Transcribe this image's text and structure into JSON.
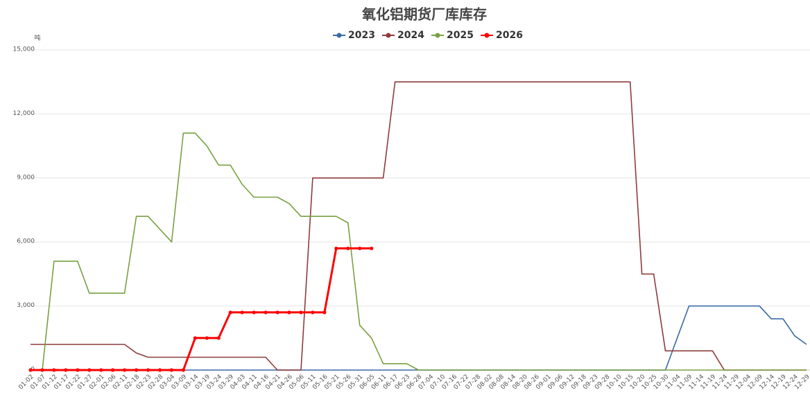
{
  "chart_data": {
    "type": "line",
    "title": "氧化铝期货厂库库存",
    "y_unit": "吨",
    "categories": [
      "01-02",
      "01-07",
      "01-12",
      "01-17",
      "01-22",
      "01-27",
      "02-01",
      "02-06",
      "02-11",
      "02-18",
      "02-23",
      "02-28",
      "03-04",
      "03-09",
      "03-14",
      "03-19",
      "03-24",
      "03-29",
      "04-03",
      "04-11",
      "04-16",
      "04-21",
      "04-26",
      "05-06",
      "05-11",
      "05-16",
      "05-21",
      "05-26",
      "05-31",
      "06-05",
      "06-11",
      "06-17",
      "06-23",
      "06-28",
      "07-04",
      "07-10",
      "07-16",
      "07-22",
      "07-28",
      "08-02",
      "08-08",
      "08-14",
      "08-20",
      "08-26",
      "09-01",
      "09-06",
      "09-12",
      "09-18",
      "09-23",
      "09-28",
      "10-10",
      "10-15",
      "10-20",
      "10-25",
      "10-30",
      "11-04",
      "11-09",
      "11-14",
      "11-19",
      "11-24",
      "11-29",
      "12-04",
      "12-09",
      "12-14",
      "12-19",
      "12-24",
      "12-29"
    ],
    "series": [
      {
        "name": "2023",
        "color": "#3a6aa5",
        "values": [
          0,
          0,
          0,
          0,
          0,
          0,
          0,
          0,
          0,
          0,
          0,
          0,
          0,
          0,
          0,
          0,
          0,
          0,
          0,
          0,
          0,
          0,
          0,
          0,
          0,
          0,
          0,
          0,
          0,
          0,
          0,
          0,
          0,
          0,
          0,
          0,
          0,
          0,
          0,
          0,
          0,
          0,
          0,
          0,
          0,
          0,
          0,
          0,
          0,
          0,
          0,
          0,
          0,
          0,
          0,
          1500,
          3000,
          3000,
          3000,
          3000,
          3000,
          3000,
          3000,
          2400,
          2400,
          1600,
          1200
        ]
      },
      {
        "name": "2024",
        "color": "#8e3b3b",
        "values": [
          1200,
          1200,
          1200,
          1200,
          1200,
          1200,
          1200,
          1200,
          1200,
          800,
          600,
          600,
          600,
          600,
          600,
          600,
          600,
          600,
          600,
          600,
          600,
          0,
          0,
          0,
          9000,
          9000,
          9000,
          9000,
          9000,
          9000,
          9000,
          13500,
          13500,
          13500,
          13500,
          13500,
          13500,
          13500,
          13500,
          13500,
          13500,
          13500,
          13500,
          13500,
          13500,
          13500,
          13500,
          13500,
          13500,
          13500,
          13500,
          13500,
          4500,
          4500,
          900,
          900,
          900,
          900,
          900,
          0,
          0,
          0,
          0,
          0,
          0,
          0,
          0
        ]
      },
      {
        "name": "2025",
        "color": "#78a042",
        "values": [
          0,
          0,
          5100,
          5100,
          5100,
          3600,
          3600,
          3600,
          3600,
          7200,
          7200,
          6600,
          6000,
          11100,
          11100,
          10500,
          9600,
          9600,
          8700,
          8100,
          8100,
          8100,
          7800,
          7200,
          7200,
          7200,
          7200,
          6900,
          2100,
          1500,
          300,
          300,
          300,
          0,
          0,
          0,
          0,
          0,
          0,
          0,
          0,
          0,
          0,
          0,
          0,
          0,
          0,
          0,
          0,
          0,
          0,
          0,
          0,
          0,
          0,
          0,
          0,
          0,
          0,
          0,
          0,
          0,
          0,
          0,
          0,
          0,
          0
        ]
      },
      {
        "name": "2026",
        "color": "#ff0000",
        "values": [
          0,
          0,
          0,
          0,
          0,
          0,
          0,
          0,
          0,
          0,
          0,
          0,
          0,
          0,
          1500,
          1500,
          1500,
          2700,
          2700,
          2700,
          2700,
          2700,
          2700,
          2700,
          2700,
          2700,
          5700,
          5700,
          5700,
          5700,
          null,
          null,
          null,
          null,
          null,
          null,
          null,
          null,
          null,
          null,
          null,
          null,
          null,
          null,
          null,
          null,
          null,
          null,
          null,
          null,
          null,
          null,
          null,
          null,
          null,
          null,
          null,
          null,
          null,
          null,
          null,
          null,
          null,
          null,
          null,
          null,
          null
        ]
      }
    ],
    "ylim": [
      0,
      15000
    ],
    "yticks": [
      0,
      {
        "value": 3000,
        "label": "3,000"
      },
      {
        "value": 6000,
        "label": "6,000"
      },
      {
        "value": 9000,
        "label": "9,000"
      },
      {
        "value": 12000,
        "label": "12,000"
      },
      {
        "value": 15000,
        "label": "15,000"
      }
    ],
    "grid": true
  }
}
